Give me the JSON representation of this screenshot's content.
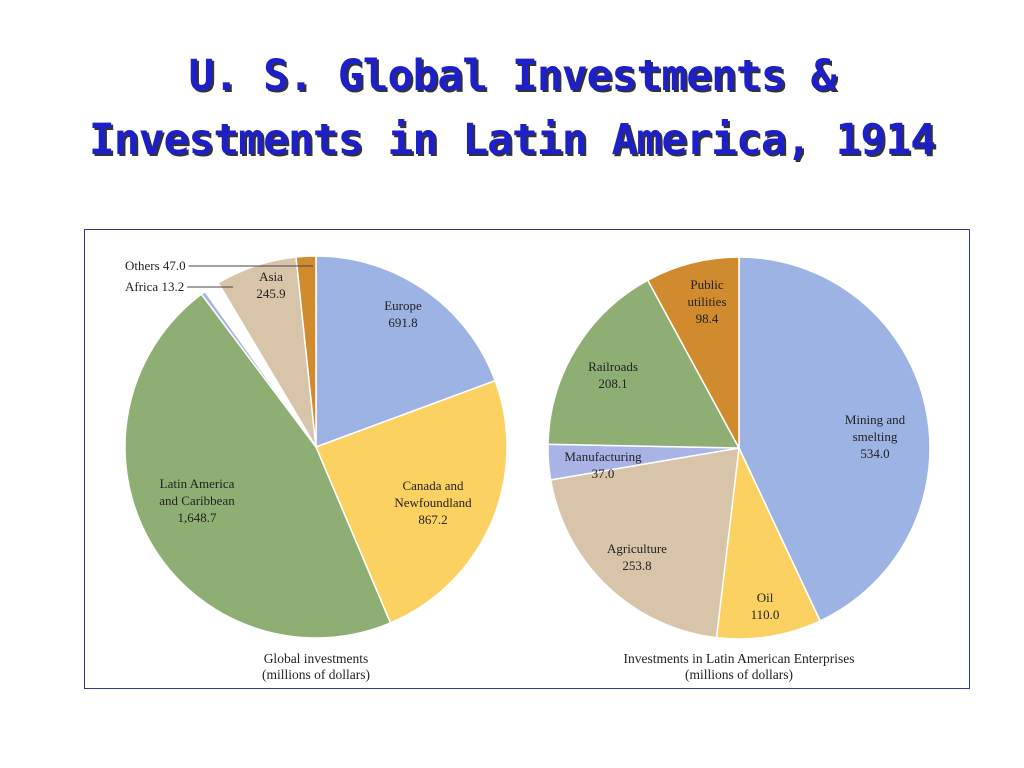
{
  "title": {
    "line1": "U. S. Global Investments &",
    "line2": "Investments in Latin America, 1914"
  },
  "chart_data": [
    {
      "type": "pie",
      "caption": [
        "Global investments",
        "(millions of dollars)"
      ],
      "slices": [
        {
          "label": [
            "Europe"
          ],
          "value": 691.8,
          "value_text": "691.8",
          "color": "#9cb3e4"
        },
        {
          "label": [
            "Canada and",
            "Newfoundland"
          ],
          "value": 867.2,
          "value_text": "867.2",
          "color": "#fbd162"
        },
        {
          "label": [
            "Latin America",
            "and Caribbean"
          ],
          "value": 1648.7,
          "value_text": "1,648.7",
          "color": "#8eae73"
        },
        {
          "label": [
            "Africa"
          ],
          "value": 13.2,
          "value_text": "13.2",
          "color": "#aab3e6",
          "callout": true
        },
        {
          "label": [
            "Others"
          ],
          "value": 47.0,
          "value_text": "47.0",
          "color": "#ffffff",
          "callout": true
        },
        {
          "label": [
            "Asia"
          ],
          "value": 245.9,
          "value_text": "245.9",
          "color": "#d8c4a8"
        },
        {
          "label": [],
          "value": 0,
          "value_text": "",
          "color": "#d08b2e",
          "note": "unlabeled thin wedge"
        }
      ]
    },
    {
      "type": "pie",
      "caption": [
        "Investments in Latin American Enterprises",
        "(millions of dollars)"
      ],
      "slices": [
        {
          "label": [
            "Mining and",
            "smelting"
          ],
          "value": 534.0,
          "value_text": "534.0",
          "color": "#9cb3e4"
        },
        {
          "label": [
            "Oil"
          ],
          "value": 110.0,
          "value_text": "110.0",
          "color": "#fbd162"
        },
        {
          "label": [
            "Agriculture"
          ],
          "value": 253.8,
          "value_text": "253.8",
          "color": "#d8c4a8"
        },
        {
          "label": [
            "Manufacturing"
          ],
          "value": 37.0,
          "value_text": "37.0",
          "color": "#aab3e6"
        },
        {
          "label": [
            "Railroads"
          ],
          "value": 208.1,
          "value_text": "208.1",
          "color": "#8eae73"
        },
        {
          "label": [
            "Public",
            "utilities"
          ],
          "value": 98.4,
          "value_text": "98.4",
          "color": "#d08b2e"
        }
      ]
    }
  ]
}
